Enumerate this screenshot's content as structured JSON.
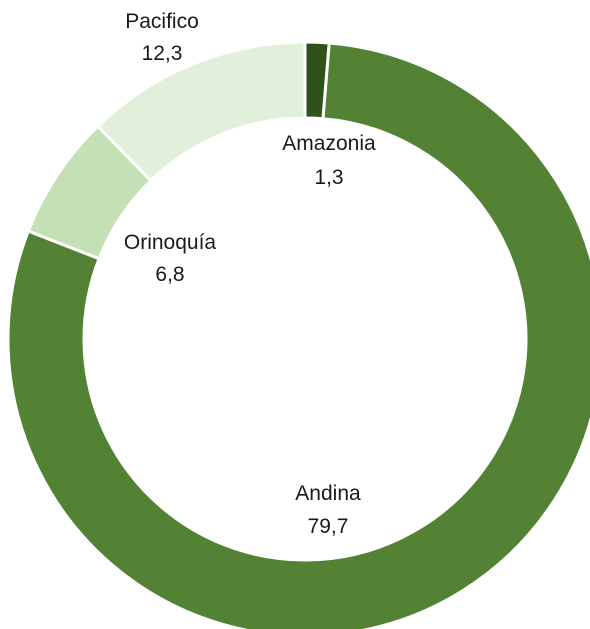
{
  "chart_data": {
    "type": "pie",
    "variant": "donut",
    "title": "",
    "categories": [
      "Amazonia",
      "Andina",
      "Orinoquía",
      "Pacifico"
    ],
    "values": [
      1.3,
      79.7,
      6.8,
      12.3
    ],
    "value_labels": [
      "1,3",
      "79,7",
      "6,8",
      "12,3"
    ],
    "colors": [
      "#2e5219",
      "#548235",
      "#c5e0b4",
      "#e2efda"
    ],
    "legend": "none",
    "start_angle_deg": 0,
    "direction": "clockwise"
  }
}
